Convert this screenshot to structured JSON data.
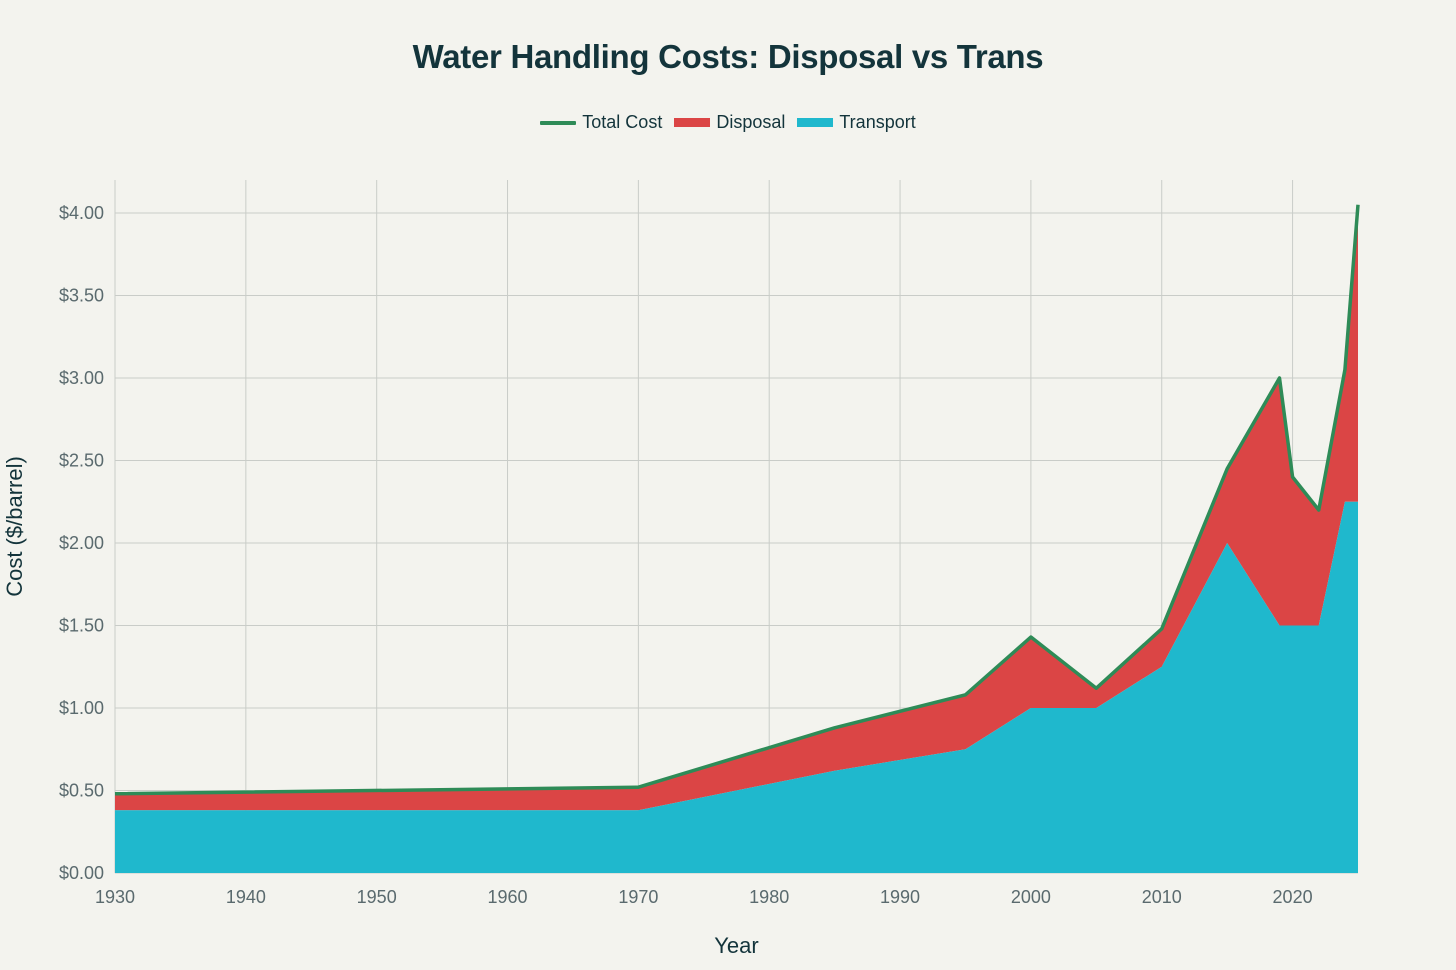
{
  "chart_data": {
    "type": "area",
    "title": "Water Handling Costs: Disposal vs Trans",
    "xlabel": "Year",
    "ylabel": "Cost ($/barrel)",
    "xlim": [
      1930,
      2025
    ],
    "ylim": [
      0,
      4.2
    ],
    "x_ticks": [
      1930,
      1940,
      1950,
      1960,
      1970,
      1980,
      1990,
      2000,
      2010,
      2020
    ],
    "y_ticks": [
      0,
      0.5,
      1.0,
      1.5,
      2.0,
      2.5,
      3.0,
      3.5,
      4.0
    ],
    "y_tick_labels": [
      "$0.00",
      "$0.50",
      "$1.00",
      "$1.50",
      "$2.00",
      "$2.50",
      "$3.00",
      "$3.50",
      "$4.00"
    ],
    "grid": true,
    "stacked": true,
    "legend_position": "top-center",
    "x": [
      1930,
      1970,
      1985,
      1995,
      2000,
      2005,
      2010,
      2015,
      2019,
      2020,
      2022,
      2024,
      2025
    ],
    "series": [
      {
        "name": "Transport",
        "kind": "area",
        "color": "#1fb8cd",
        "values": [
          0.38,
          0.38,
          0.62,
          0.75,
          1.0,
          1.0,
          1.25,
          2.0,
          1.5,
          1.5,
          1.5,
          2.25,
          2.25
        ]
      },
      {
        "name": "Disposal",
        "kind": "area",
        "color": "#db4545",
        "values": [
          0.1,
          0.14,
          0.26,
          0.33,
          0.43,
          0.12,
          0.23,
          0.45,
          1.5,
          0.9,
          0.7,
          0.8,
          1.8
        ]
      },
      {
        "name": "Total Cost",
        "kind": "line",
        "color": "#2e8b57",
        "values": [
          0.48,
          0.52,
          0.88,
          1.08,
          1.43,
          1.12,
          1.48,
          2.45,
          3.0,
          2.4,
          2.2,
          3.05,
          4.05
        ]
      }
    ],
    "legend": [
      "Total Cost",
      "Disposal",
      "Transport"
    ]
  }
}
